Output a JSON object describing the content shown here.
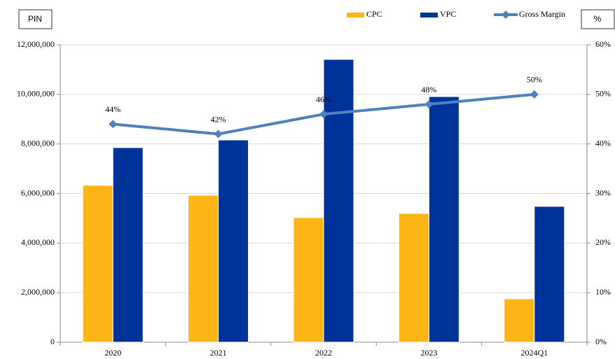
{
  "chart_data": {
    "type": "bar",
    "ylabel": "PIN",
    "y2label": "%",
    "categories": [
      "2020",
      "2021",
      "2022",
      "2023",
      "2024Q1"
    ],
    "series": [
      {
        "name": "CPC",
        "color": "#fdb515",
        "values": [
          6330000,
          5930000,
          5030000,
          5195000,
          1750000
        ]
      },
      {
        "name": "VPC",
        "color": "#003399",
        "values": [
          7850000,
          8160000,
          11410000,
          9910000,
          5480000
        ]
      },
      {
        "name": "Gross Margin",
        "color": "#4f81bd",
        "axis": "y2",
        "type": "line",
        "values": [
          44,
          42,
          46,
          48,
          50
        ],
        "value_labels": [
          "44%",
          "42%",
          "46%",
          "48%",
          "50%"
        ]
      }
    ],
    "ylim": [
      0,
      12000000
    ],
    "yticks": [
      0,
      {
        "value": 2000000,
        "label": "2,000,000"
      },
      {
        "value": 4000000,
        "label": "4,000,000"
      },
      {
        "value": 6000000,
        "label": "6,000,000"
      },
      {
        "value": 8000000,
        "label": "8,000,000"
      },
      {
        "value": 10000000,
        "label": "10,000,000"
      },
      {
        "value": 12000000,
        "label": "12,000,000"
      }
    ],
    "y2lim": [
      0,
      60
    ],
    "y2ticks": [
      {
        "value": 0,
        "label": "0%"
      },
      {
        "value": 10,
        "label": "10%"
      },
      {
        "value": 20,
        "label": "20%"
      },
      {
        "value": 30,
        "label": "30%"
      },
      {
        "value": 40,
        "label": "40%"
      },
      {
        "value": 50,
        "label": "50%"
      },
      {
        "value": 60,
        "label": "60%"
      }
    ],
    "grid": true
  }
}
